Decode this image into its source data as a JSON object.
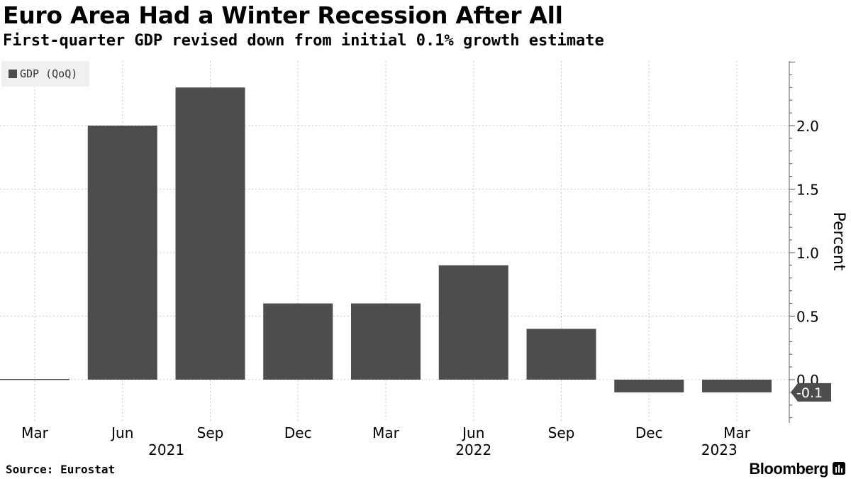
{
  "title": "Euro Area Had a Winter Recession After All",
  "subtitle": "First-quarter GDP revised down from initial 0.1% growth estimate",
  "source": "Source: Eurostat",
  "brand": "Bloomberg",
  "colors": {
    "bar": "#4d4d4d",
    "grid": "#c8c8c8",
    "axis": "#555555",
    "callout": "#4d4d4d"
  },
  "chart_data": {
    "type": "bar",
    "title": "Euro Area Had a Winter Recession After All",
    "subtitle": "First-quarter GDP revised down from initial 0.1% growth estimate",
    "categories": [
      "Mar",
      "Jun",
      "Sep",
      "Dec",
      "Mar",
      "Jun",
      "Sep",
      "Dec",
      "Mar"
    ],
    "year_labels": [
      {
        "label": "2021",
        "category_index": 1.5
      },
      {
        "label": "2022",
        "category_index": 5
      },
      {
        "label": "2023",
        "category_index": 7.8
      }
    ],
    "series": [
      {
        "name": "GDP (QoQ)",
        "values": [
          -0.0,
          2.0,
          2.3,
          0.6,
          0.6,
          0.9,
          0.4,
          -0.1,
          -0.1
        ]
      }
    ],
    "ylabel": "Percent",
    "xlabel": "",
    "ylim": [
      -0.3,
      2.5
    ],
    "yticks": [
      0.0,
      0.5,
      1.0,
      1.5,
      2.0
    ],
    "ytick_labels": [
      "0.0",
      "0.5",
      "1.0",
      "1.5",
      "2.0"
    ],
    "last_value_label": "-0.1",
    "grid": true,
    "legend": "top-left"
  }
}
